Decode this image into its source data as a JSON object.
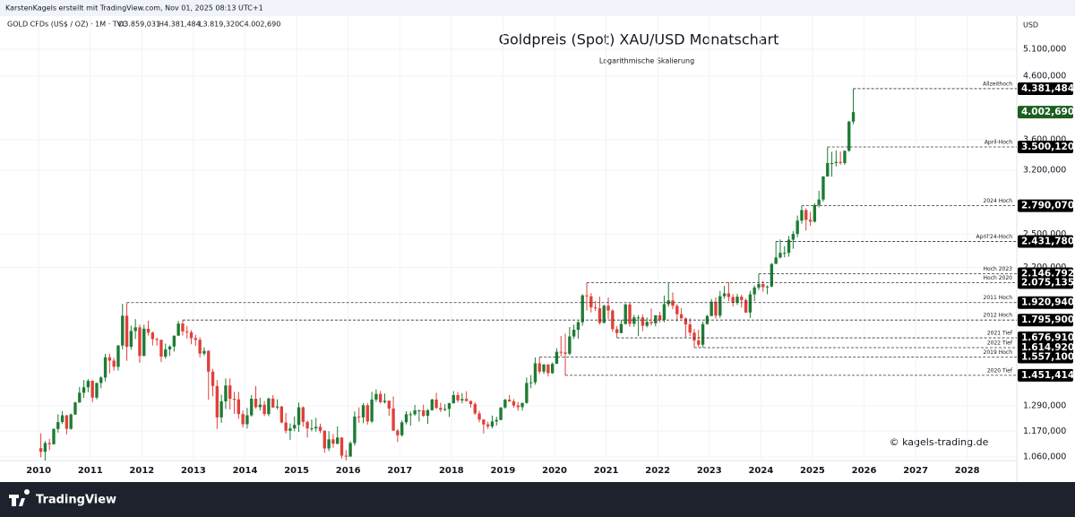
{
  "header": {
    "credit": "KarstenKagels erstellt mit TradingView.com, Nov 01, 2025 08:13 UTC+1"
  },
  "footer": {
    "brand": "TradingView"
  },
  "chart_data": {
    "type": "candlestick",
    "title": "Goldpreis (Spot) XAU/USD Monatschart",
    "subtitle": "Logarithmische Skalierung",
    "symbol": "GOLD CFDs (US$ / OZ) · 1M · TVC",
    "ohlc_labels": [
      "O3.859,031",
      "H4.381,484",
      "L3.819,320",
      "C4.002,690"
    ],
    "axis_unit": "USD",
    "watermark": "© kagels-trading.de",
    "log_scale": true,
    "grid": true,
    "up_color": "#1e7b34",
    "down_color": "#e0403a",
    "ylim": [
      1045,
      5795
    ],
    "yticks": [
      {
        "value": 1060,
        "label": "1.060,000"
      },
      {
        "value": 1170,
        "label": "1.170,000"
      },
      {
        "value": 1290,
        "label": "1.290,000"
      },
      {
        "value": 2200,
        "label": "2.200,000"
      },
      {
        "value": 2500,
        "label": "2.500,000"
      },
      {
        "value": 3200,
        "label": "3.200,000"
      },
      {
        "value": 3600,
        "label": "3.600,000"
      },
      {
        "value": 4600,
        "label": "4.600,000"
      },
      {
        "value": 5100,
        "label": "5.100,000"
      }
    ],
    "xlim": [
      2009.25,
      2028.96
    ],
    "xticks": [
      2010,
      2011,
      2012,
      2013,
      2014,
      2015,
      2016,
      2017,
      2018,
      2019,
      2020,
      2021,
      2022,
      2023,
      2024,
      2025,
      2026,
      2027,
      2028
    ],
    "current_price": {
      "value": 4002.69,
      "label": "4.002,690"
    },
    "levels": [
      {
        "name": "Allzeithoch",
        "value": 4381.484,
        "label": "4.381,484"
      },
      {
        "name": "April-Hoch",
        "value": 3500.12,
        "label": "3.500,120"
      },
      {
        "name": "2024 Hoch",
        "value": 2790.07,
        "label": "2.790,070"
      },
      {
        "name": "April'24-Hoch",
        "value": 2431.78,
        "label": "2.431,780"
      },
      {
        "name": "Hoch 2023",
        "value": 2146.792,
        "label": "2.146,792"
      },
      {
        "name": "Hoch 2020",
        "value": 2075.135,
        "label": "2.075,135"
      },
      {
        "name": "2011 Hoch",
        "value": 1920.94,
        "label": "1.920,940"
      },
      {
        "name": "2012 Hoch",
        "value": 1795.9,
        "label": "1.795,900"
      },
      {
        "name": "2021 Tief",
        "value": 1676.91,
        "label": "1.676,910"
      },
      {
        "name": "2022 Tief",
        "value": 1614.92,
        "label": "1.614,920"
      },
      {
        "name": "2019 Hoch",
        "value": 1557.1,
        "label": "1.557,100"
      },
      {
        "name": "2020 Tief",
        "value": 1451.414,
        "label": "1.451,414"
      }
    ],
    "candles": [
      [
        1096,
        1161,
        1058,
        1081
      ],
      [
        1081,
        1127,
        1045,
        1118
      ],
      [
        1118,
        1136,
        1087,
        1113
      ],
      [
        1113,
        1183,
        1111,
        1180
      ],
      [
        1180,
        1249,
        1164,
        1212
      ],
      [
        1212,
        1265,
        1203,
        1244
      ],
      [
        1244,
        1246,
        1156,
        1181
      ],
      [
        1181,
        1253,
        1177,
        1248
      ],
      [
        1248,
        1311,
        1245,
        1307
      ],
      [
        1307,
        1388,
        1305,
        1357
      ],
      [
        1357,
        1425,
        1330,
        1386
      ],
      [
        1386,
        1431,
        1360,
        1421
      ],
      [
        1421,
        1424,
        1309,
        1332
      ],
      [
        1332,
        1411,
        1323,
        1409
      ],
      [
        1409,
        1447,
        1381,
        1439
      ],
      [
        1439,
        1576,
        1417,
        1556
      ],
      [
        1556,
        1577,
        1462,
        1536
      ],
      [
        1536,
        1552,
        1478,
        1500
      ],
      [
        1500,
        1632,
        1478,
        1628
      ],
      [
        1628,
        1912,
        1604,
        1826
      ],
      [
        1826,
        1921,
        1535,
        1620
      ],
      [
        1620,
        1757,
        1602,
        1722
      ],
      [
        1722,
        1803,
        1670,
        1746
      ],
      [
        1746,
        1764,
        1523,
        1564
      ],
      [
        1564,
        1764,
        1562,
        1737
      ],
      [
        1737,
        1791,
        1692,
        1711
      ],
      [
        1711,
        1719,
        1628,
        1669
      ],
      [
        1669,
        1678,
        1627,
        1664
      ],
      [
        1664,
        1666,
        1527,
        1560
      ],
      [
        1560,
        1640,
        1547,
        1604
      ],
      [
        1604,
        1630,
        1564,
        1622
      ],
      [
        1622,
        1692,
        1590,
        1691
      ],
      [
        1691,
        1790,
        1690,
        1772
      ],
      [
        1772,
        1796,
        1692,
        1719
      ],
      [
        1719,
        1755,
        1672,
        1713
      ],
      [
        1713,
        1727,
        1636,
        1675
      ],
      [
        1675,
        1697,
        1626,
        1664
      ],
      [
        1664,
        1681,
        1555,
        1578
      ],
      [
        1578,
        1617,
        1566,
        1595
      ],
      [
        1595,
        1599,
        1321,
        1472
      ],
      [
        1472,
        1488,
        1339,
        1393
      ],
      [
        1393,
        1425,
        1180,
        1234
      ],
      [
        1234,
        1347,
        1208,
        1313
      ],
      [
        1313,
        1434,
        1275,
        1396
      ],
      [
        1396,
        1434,
        1272,
        1326
      ],
      [
        1326,
        1362,
        1251,
        1323
      ],
      [
        1323,
        1362,
        1227,
        1250
      ],
      [
        1250,
        1267,
        1187,
        1202
      ],
      [
        1202,
        1280,
        1182,
        1244
      ],
      [
        1244,
        1345,
        1238,
        1326
      ],
      [
        1326,
        1392,
        1277,
        1284
      ],
      [
        1284,
        1331,
        1268,
        1296
      ],
      [
        1296,
        1315,
        1240,
        1250
      ],
      [
        1250,
        1332,
        1240,
        1327
      ],
      [
        1327,
        1345,
        1281,
        1282
      ],
      [
        1282,
        1323,
        1273,
        1287
      ],
      [
        1287,
        1290,
        1206,
        1210
      ],
      [
        1210,
        1255,
        1160,
        1172
      ],
      [
        1172,
        1206,
        1132,
        1183
      ],
      [
        1183,
        1239,
        1170,
        1199
      ],
      [
        1199,
        1307,
        1167,
        1283
      ],
      [
        1283,
        1287,
        1190,
        1213
      ],
      [
        1213,
        1219,
        1142,
        1183
      ],
      [
        1183,
        1224,
        1170,
        1183
      ],
      [
        1183,
        1232,
        1168,
        1190
      ],
      [
        1190,
        1205,
        1162,
        1172
      ],
      [
        1172,
        1175,
        1077,
        1095
      ],
      [
        1095,
        1170,
        1084,
        1134
      ],
      [
        1134,
        1157,
        1098,
        1115
      ],
      [
        1115,
        1192,
        1112,
        1142
      ],
      [
        1142,
        1143,
        1053,
        1065
      ],
      [
        1065,
        1088,
        1046,
        1061
      ],
      [
        1061,
        1126,
        1061,
        1118
      ],
      [
        1118,
        1263,
        1107,
        1238
      ],
      [
        1238,
        1283,
        1208,
        1234
      ],
      [
        1234,
        1304,
        1207,
        1293
      ],
      [
        1293,
        1304,
        1200,
        1215
      ],
      [
        1215,
        1362,
        1207,
        1322
      ],
      [
        1322,
        1375,
        1310,
        1351
      ],
      [
        1351,
        1367,
        1302,
        1309
      ],
      [
        1309,
        1353,
        1302,
        1316
      ],
      [
        1316,
        1318,
        1241,
        1277
      ],
      [
        1277,
        1338,
        1171,
        1173
      ],
      [
        1173,
        1180,
        1122,
        1152
      ],
      [
        1152,
        1220,
        1146,
        1211
      ],
      [
        1211,
        1264,
        1201,
        1249
      ],
      [
        1249,
        1262,
        1195,
        1249
      ],
      [
        1249,
        1295,
        1242,
        1268
      ],
      [
        1268,
        1271,
        1214,
        1268
      ],
      [
        1268,
        1296,
        1236,
        1242
      ],
      [
        1242,
        1274,
        1204,
        1269
      ],
      [
        1269,
        1326,
        1267,
        1322
      ],
      [
        1322,
        1357,
        1275,
        1280
      ],
      [
        1280,
        1306,
        1260,
        1271
      ],
      [
        1271,
        1299,
        1264,
        1275
      ],
      [
        1275,
        1306,
        1236,
        1303
      ],
      [
        1303,
        1366,
        1302,
        1345
      ],
      [
        1345,
        1361,
        1307,
        1318
      ],
      [
        1318,
        1356,
        1303,
        1325
      ],
      [
        1325,
        1365,
        1311,
        1315
      ],
      [
        1315,
        1316,
        1282,
        1299
      ],
      [
        1299,
        1309,
        1246,
        1253
      ],
      [
        1253,
        1266,
        1211,
        1224
      ],
      [
        1224,
        1225,
        1160,
        1201
      ],
      [
        1201,
        1214,
        1180,
        1192
      ],
      [
        1192,
        1243,
        1183,
        1215
      ],
      [
        1215,
        1237,
        1196,
        1222
      ],
      [
        1222,
        1284,
        1221,
        1282
      ],
      [
        1282,
        1326,
        1276,
        1321
      ],
      [
        1321,
        1346,
        1310,
        1313
      ],
      [
        1313,
        1324,
        1281,
        1292
      ],
      [
        1292,
        1310,
        1266,
        1284
      ],
      [
        1284,
        1306,
        1267,
        1305
      ],
      [
        1305,
        1439,
        1301,
        1409
      ],
      [
        1409,
        1453,
        1381,
        1413
      ],
      [
        1413,
        1555,
        1400,
        1520
      ],
      [
        1520,
        1557,
        1459,
        1472
      ],
      [
        1472,
        1516,
        1459,
        1513
      ],
      [
        1513,
        1516,
        1445,
        1464
      ],
      [
        1464,
        1525,
        1459,
        1517
      ],
      [
        1517,
        1611,
        1517,
        1589
      ],
      [
        1589,
        1689,
        1563,
        1585
      ],
      [
        1585,
        1704,
        1451,
        1577
      ],
      [
        1577,
        1748,
        1568,
        1686
      ],
      [
        1686,
        1765,
        1670,
        1730
      ],
      [
        1730,
        1789,
        1671,
        1781
      ],
      [
        1781,
        1984,
        1757,
        1975
      ],
      [
        1975,
        2075,
        1863,
        1968
      ],
      [
        1968,
        1992,
        1849,
        1886
      ],
      [
        1886,
        1933,
        1860,
        1879
      ],
      [
        1879,
        1966,
        1764,
        1776
      ],
      [
        1776,
        1906,
        1775,
        1898
      ],
      [
        1898,
        1959,
        1802,
        1863
      ],
      [
        1863,
        1872,
        1717,
        1734
      ],
      [
        1734,
        1755,
        1677,
        1708
      ],
      [
        1708,
        1798,
        1707,
        1769
      ],
      [
        1769,
        1913,
        1765,
        1907
      ],
      [
        1907,
        1917,
        1750,
        1770
      ],
      [
        1770,
        1833,
        1750,
        1814
      ],
      [
        1814,
        1832,
        1688,
        1814
      ],
      [
        1814,
        1834,
        1721,
        1757
      ],
      [
        1757,
        1814,
        1746,
        1783
      ],
      [
        1783,
        1877,
        1759,
        1774
      ],
      [
        1774,
        1831,
        1753,
        1829
      ],
      [
        1829,
        1853,
        1780,
        1797
      ],
      [
        1797,
        1974,
        1780,
        1909
      ],
      [
        1909,
        2070,
        1890,
        1937
      ],
      [
        1937,
        1998,
        1872,
        1897
      ],
      [
        1897,
        1910,
        1787,
        1837
      ],
      [
        1837,
        1880,
        1806,
        1807
      ],
      [
        1807,
        1814,
        1681,
        1766
      ],
      [
        1766,
        1808,
        1688,
        1711
      ],
      [
        1711,
        1735,
        1615,
        1660
      ],
      [
        1660,
        1730,
        1617,
        1633
      ],
      [
        1633,
        1786,
        1616,
        1768
      ],
      [
        1768,
        1833,
        1765,
        1824
      ],
      [
        1824,
        1949,
        1824,
        1928
      ],
      [
        1928,
        1960,
        1805,
        1827
      ],
      [
        1827,
        2009,
        1810,
        1969
      ],
      [
        1969,
        2048,
        1950,
        1990
      ],
      [
        1990,
        2079,
        1932,
        1963
      ],
      [
        1963,
        1984,
        1893,
        1919
      ],
      [
        1919,
        1987,
        1903,
        1965
      ],
      [
        1965,
        1980,
        1884,
        1940
      ],
      [
        1940,
        1953,
        1846,
        1849
      ],
      [
        1849,
        2009,
        1810,
        1983
      ],
      [
        1983,
        2052,
        1931,
        2036
      ],
      [
        2036,
        2147,
        2016,
        2063
      ],
      [
        2063,
        2088,
        2002,
        2039
      ],
      [
        2039,
        2053,
        1984,
        2044
      ],
      [
        2044,
        2236,
        2039,
        2230
      ],
      [
        2230,
        2432,
        2229,
        2286
      ],
      [
        2286,
        2450,
        2277,
        2327
      ],
      [
        2327,
        2387,
        2286,
        2327
      ],
      [
        2327,
        2484,
        2293,
        2448
      ],
      [
        2448,
        2531,
        2364,
        2503
      ],
      [
        2503,
        2686,
        2472,
        2635
      ],
      [
        2635,
        2790,
        2604,
        2744
      ],
      [
        2744,
        2762,
        2537,
        2643
      ],
      [
        2643,
        2726,
        2583,
        2625
      ],
      [
        2625,
        2817,
        2615,
        2798
      ],
      [
        2798,
        2956,
        2772,
        2858
      ],
      [
        2858,
        3128,
        2833,
        3124
      ],
      [
        3124,
        3500,
        3121,
        3289
      ],
      [
        3289,
        3435,
        3121,
        3289
      ],
      [
        3289,
        3452,
        3247,
        3303
      ],
      [
        3303,
        3439,
        3268,
        3290
      ],
      [
        3290,
        3453,
        3268,
        3448
      ],
      [
        3448,
        3871,
        3436,
        3859
      ],
      [
        3859.031,
        4381.484,
        3819.32,
        4002.69
      ]
    ]
  }
}
